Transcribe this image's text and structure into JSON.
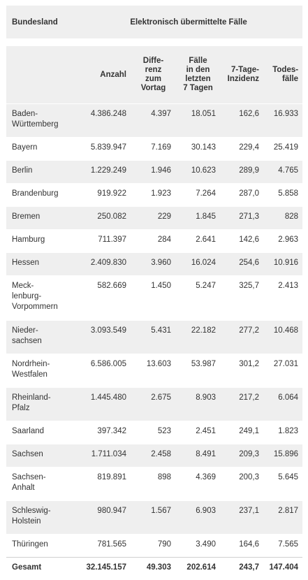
{
  "table": {
    "headers": {
      "land": "Bundesland",
      "group": "Elektronisch übermittelte Fälle",
      "anzahl": "Anzahl",
      "differenz": "Diffe-\nrenz\nzum\nVortag",
      "faelle7": "Fälle\nin den\nletzten\n7 Tagen",
      "inzidenz": "7-Tage-\nInzidenz",
      "todesfaelle": "Todes-\nfälle"
    },
    "rows": [
      {
        "land": "Baden-\nWürttemberg",
        "anzahl": "4.386.248",
        "differenz": "4.397",
        "faelle7": "18.051",
        "inzidenz": "162,6",
        "todesfaelle": "16.933"
      },
      {
        "land": "Bayern",
        "anzahl": "5.839.947",
        "differenz": "7.169",
        "faelle7": "30.143",
        "inzidenz": "229,4",
        "todesfaelle": "25.419"
      },
      {
        "land": "Berlin",
        "anzahl": "1.229.249",
        "differenz": "1.946",
        "faelle7": "10.623",
        "inzidenz": "289,9",
        "todesfaelle": "4.765"
      },
      {
        "land": "Brandenburg",
        "anzahl": "919.922",
        "differenz": "1.923",
        "faelle7": "7.264",
        "inzidenz": "287,0",
        "todesfaelle": "5.858"
      },
      {
        "land": "Bremen",
        "anzahl": "250.082",
        "differenz": "229",
        "faelle7": "1.845",
        "inzidenz": "271,3",
        "todesfaelle": "828"
      },
      {
        "land": "Hamburg",
        "anzahl": "711.397",
        "differenz": "284",
        "faelle7": "2.641",
        "inzidenz": "142,6",
        "todesfaelle": "2.963"
      },
      {
        "land": "Hessen",
        "anzahl": "2.409.830",
        "differenz": "3.960",
        "faelle7": "16.024",
        "inzidenz": "254,6",
        "todesfaelle": "10.916"
      },
      {
        "land": "Meck-\nlenburg-\nVorpommern",
        "anzahl": "582.669",
        "differenz": "1.450",
        "faelle7": "5.247",
        "inzidenz": "325,7",
        "todesfaelle": "2.413"
      },
      {
        "land": "Nieder-\nsachsen",
        "anzahl": "3.093.549",
        "differenz": "5.431",
        "faelle7": "22.182",
        "inzidenz": "277,2",
        "todesfaelle": "10.468"
      },
      {
        "land": "Nordrhein-\nWestfalen",
        "anzahl": "6.586.005",
        "differenz": "13.603",
        "faelle7": "53.987",
        "inzidenz": "301,2",
        "todesfaelle": "27.031"
      },
      {
        "land": "Rheinland-\nPfalz",
        "anzahl": "1.445.480",
        "differenz": "2.675",
        "faelle7": "8.903",
        "inzidenz": "217,2",
        "todesfaelle": "6.064"
      },
      {
        "land": "Saarland",
        "anzahl": "397.342",
        "differenz": "523",
        "faelle7": "2.451",
        "inzidenz": "249,1",
        "todesfaelle": "1.823"
      },
      {
        "land": "Sachsen",
        "anzahl": "1.711.034",
        "differenz": "2.458",
        "faelle7": "8.491",
        "inzidenz": "209,3",
        "todesfaelle": "15.896"
      },
      {
        "land": "Sachsen-\nAnhalt",
        "anzahl": "819.891",
        "differenz": "898",
        "faelle7": "4.369",
        "inzidenz": "200,3",
        "todesfaelle": "5.645"
      },
      {
        "land": "Schleswig-\nHolstein",
        "anzahl": "980.947",
        "differenz": "1.567",
        "faelle7": "6.903",
        "inzidenz": "237,1",
        "todesfaelle": "2.817"
      },
      {
        "land": "Thüringen",
        "anzahl": "781.565",
        "differenz": "790",
        "faelle7": "3.490",
        "inzidenz": "164,6",
        "todesfaelle": "7.565"
      }
    ],
    "total": {
      "land": "Gesamt",
      "anzahl": "32.145.157",
      "differenz": "49.303",
      "faelle7": "202.614",
      "inzidenz": "243,7",
      "todesfaelle": "147.404"
    }
  }
}
